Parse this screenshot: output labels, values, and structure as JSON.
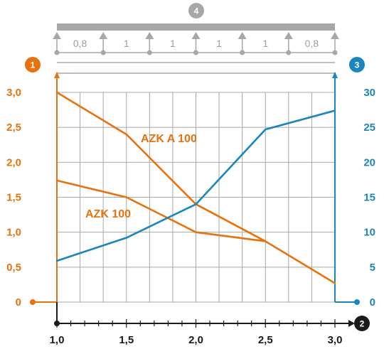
{
  "colors": {
    "orange": "#e8720c",
    "blue": "#1a86c0",
    "grid": "#a8a8a8",
    "beam": "#a7a7a7",
    "axis": "#1a1a1a"
  },
  "badges": {
    "left": "1",
    "right": "3",
    "bottom": "2",
    "top": "4"
  },
  "beam": {
    "spans": [
      "0,8",
      "1",
      "1",
      "1",
      "1",
      "0,8"
    ]
  },
  "chart_data": {
    "type": "line",
    "x": [
      1.0,
      1.5,
      2.0,
      2.5,
      3.0
    ],
    "xlim": [
      1.0,
      3.0
    ],
    "x_ticks": [
      "1,0",
      "1,5",
      "2,0",
      "2,5",
      "3,0"
    ],
    "y_left": {
      "ylim": [
        0,
        3.0
      ],
      "ticks": [
        "0",
        "0,5",
        "1,0",
        "1,5",
        "2,0",
        "2,5",
        "3,0"
      ]
    },
    "y_right": {
      "ylim": [
        0,
        30
      ],
      "ticks": [
        "0",
        "5",
        "10",
        "15",
        "20",
        "25",
        "30"
      ]
    },
    "grid": true,
    "series": [
      {
        "name": "AZK A 100",
        "axis": "left",
        "color": "orange",
        "values": [
          3.0,
          2.4,
          1.4,
          0.87,
          0.27
        ]
      },
      {
        "name": "AZK 100",
        "axis": "left",
        "color": "orange",
        "values": [
          1.74,
          1.5,
          1.0,
          0.87,
          null
        ]
      },
      {
        "name": "",
        "axis": "right",
        "color": "blue",
        "values": [
          5.9,
          9.2,
          14.0,
          24.7,
          27.4
        ]
      }
    ]
  }
}
